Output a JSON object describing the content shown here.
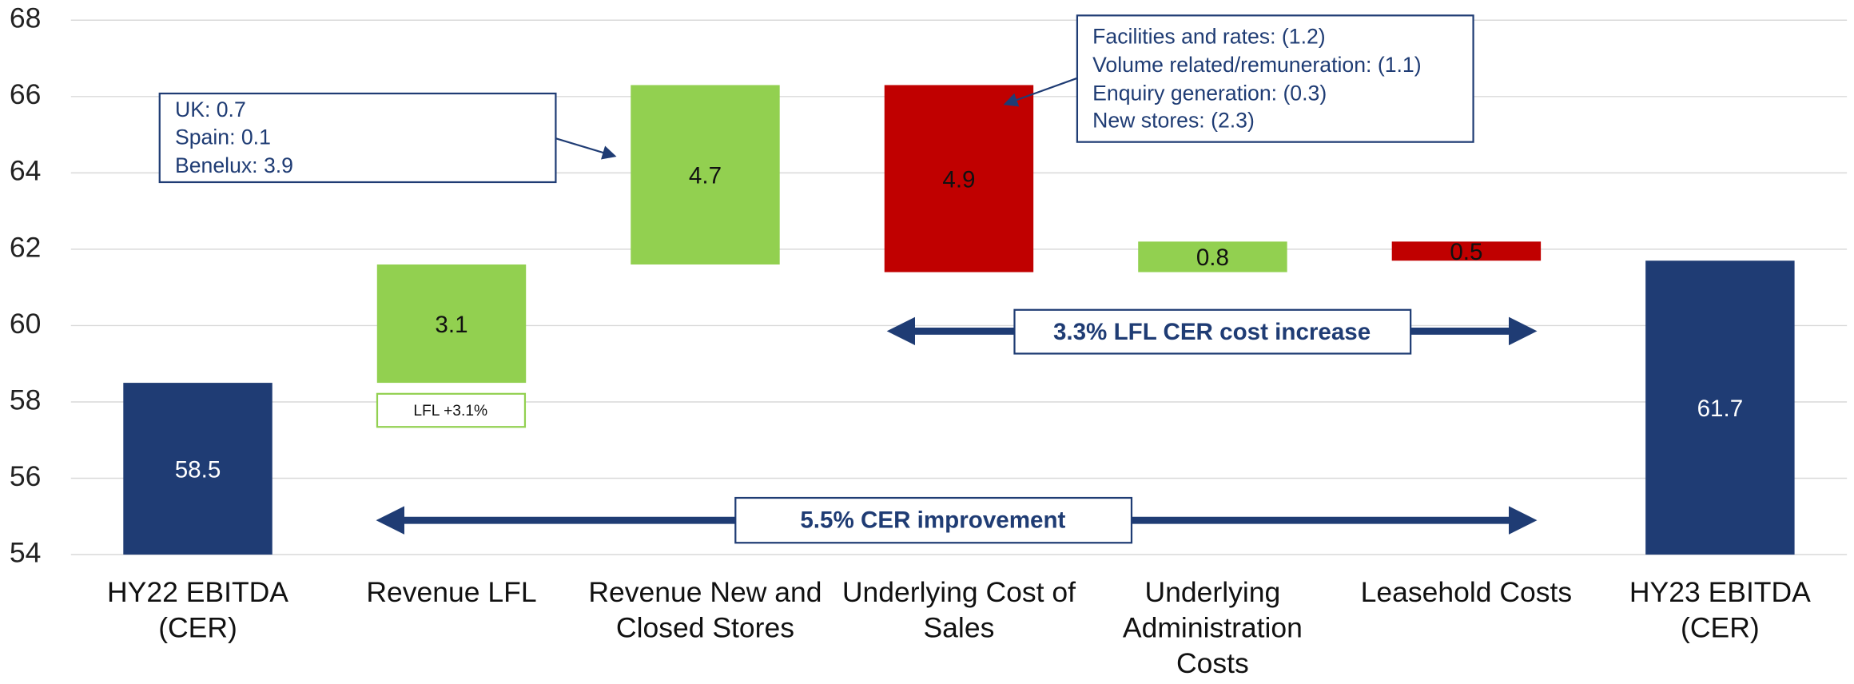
{
  "chart_data": {
    "type": "waterfall",
    "categories": [
      "HY22 EBITDA (CER)",
      "Revenue LFL",
      "Revenue New and Closed Stores",
      "Underlying Cost of Sales",
      "Underlying Administration Costs",
      "Leasehold Costs",
      "HY23 EBITDA (CER)"
    ],
    "values": [
      58.5,
      3.1,
      4.7,
      -4.9,
      0.8,
      -0.5,
      61.7
    ],
    "value_labels": [
      "58.5",
      "3.1",
      "4.7",
      "4.9",
      "0.8",
      "0.5",
      "61.7"
    ],
    "total_indices": [
      0,
      6
    ],
    "colors": {
      "total": "#1f3c74",
      "increase": "#92d050",
      "decrease": "#c00000"
    },
    "ylim": [
      54,
      68
    ],
    "yticks": [
      54,
      56,
      58,
      60,
      62,
      64,
      66,
      68
    ],
    "grid": true,
    "annotations": [
      {
        "lines": [
          "UK: 0.7",
          "Spain: 0.1",
          "Benelux: 3.9"
        ]
      },
      {
        "lines": [
          "Facilities and rates: (1.2)",
          "Volume related/remuneration: (1.1)",
          "Enquiry generation: (0.3)",
          "New stores: (2.3)"
        ]
      },
      {
        "text": "LFL +3.1%"
      },
      {
        "text": "3.3% LFL CER cost increase"
      },
      {
        "text": "5.5% CER improvement"
      }
    ]
  }
}
